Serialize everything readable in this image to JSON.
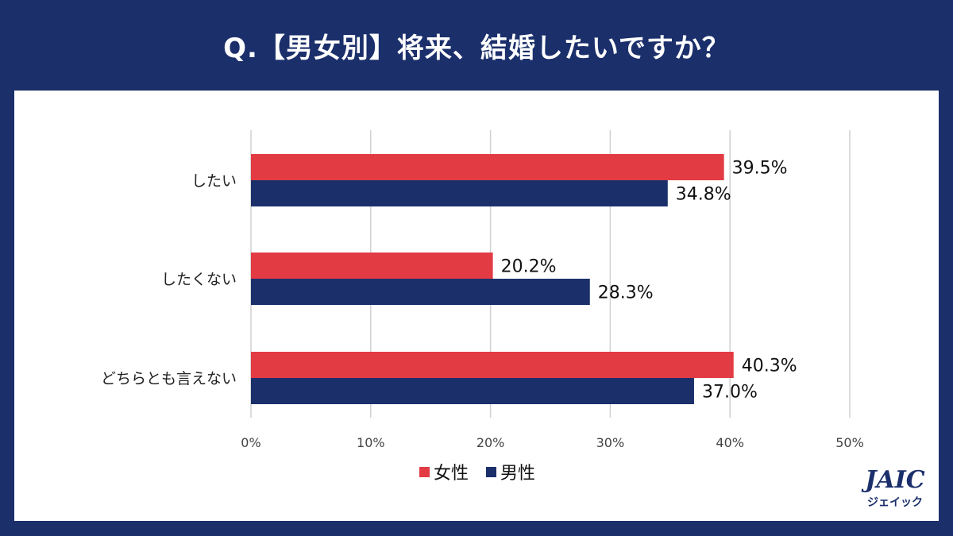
{
  "header": {
    "title": "Q.【男女別】将来、結婚したいですか？"
  },
  "colors": {
    "female": "#e23b44",
    "male": "#1b2f6b",
    "background": "#1b2f6b",
    "grid": "#d0d0d0"
  },
  "logo": {
    "main": "JAIC",
    "sub": "ジェイック"
  },
  "chart_data": {
    "type": "bar",
    "orientation": "horizontal",
    "title": "Q.【男女別】将来、結婚したいですか？",
    "categories": [
      "したい",
      "したくない",
      "どちらとも言えない"
    ],
    "series": [
      {
        "name": "女性",
        "values": [
          39.5,
          20.2,
          40.3
        ],
        "labels": [
          "39.5%",
          "20.2%",
          "40.3%"
        ]
      },
      {
        "name": "男性",
        "values": [
          34.8,
          28.3,
          37.0
        ],
        "labels": [
          "34.8%",
          "28.3%",
          "37.0%"
        ]
      }
    ],
    "xlim": [
      0,
      50
    ],
    "xticks": [
      0,
      10,
      20,
      30,
      40,
      50
    ],
    "xtick_labels": [
      "0%",
      "10%",
      "20%",
      "30%",
      "40%",
      "50%"
    ],
    "grid": true,
    "legend": "bottom-center"
  }
}
